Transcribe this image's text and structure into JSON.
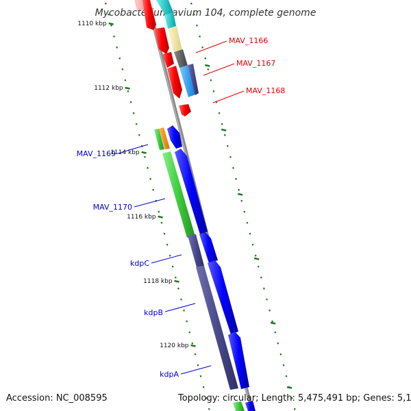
{
  "title": "Mycobacterium avium 104, complete genome",
  "footer": {
    "accession": "Accession: NC_008595",
    "summary": "Topology: circular; Length: 5,475,491 bp; Genes: 5,170"
  },
  "colors": {
    "backbone": "#8a8a8a",
    "tick": "#1e7a1e",
    "red": "#ff0000",
    "blue": "#0000ff",
    "green": "#3ccc3c",
    "purple": "#4a4a8c",
    "orange": "#ff8c00",
    "cyan": "#00c8c8",
    "lightblue": "#1ea0ff",
    "yellow": "#f0e6a0",
    "gray": "#5a5a5a",
    "label_red": "#dd0000",
    "label_blue": "#0000cc"
  },
  "axis": {
    "unit": "kbp",
    "ticks": [
      {
        "label": "1110 kbp"
      },
      {
        "label": "1112 kbp"
      },
      {
        "label": "1114 kbp"
      },
      {
        "label": "1116 kbp"
      },
      {
        "label": "1118 kbp"
      },
      {
        "label": "1120 kbp"
      }
    ]
  },
  "genes_right": [
    {
      "label": "MAV_1166"
    },
    {
      "label": "MAV_1167"
    },
    {
      "label": "MAV_1168"
    }
  ],
  "genes_left": [
    {
      "label": "MAV_1169"
    },
    {
      "label": "MAV_1170"
    },
    {
      "label": "kdpC"
    },
    {
      "label": "kdpB"
    },
    {
      "label": "kdpA"
    }
  ]
}
